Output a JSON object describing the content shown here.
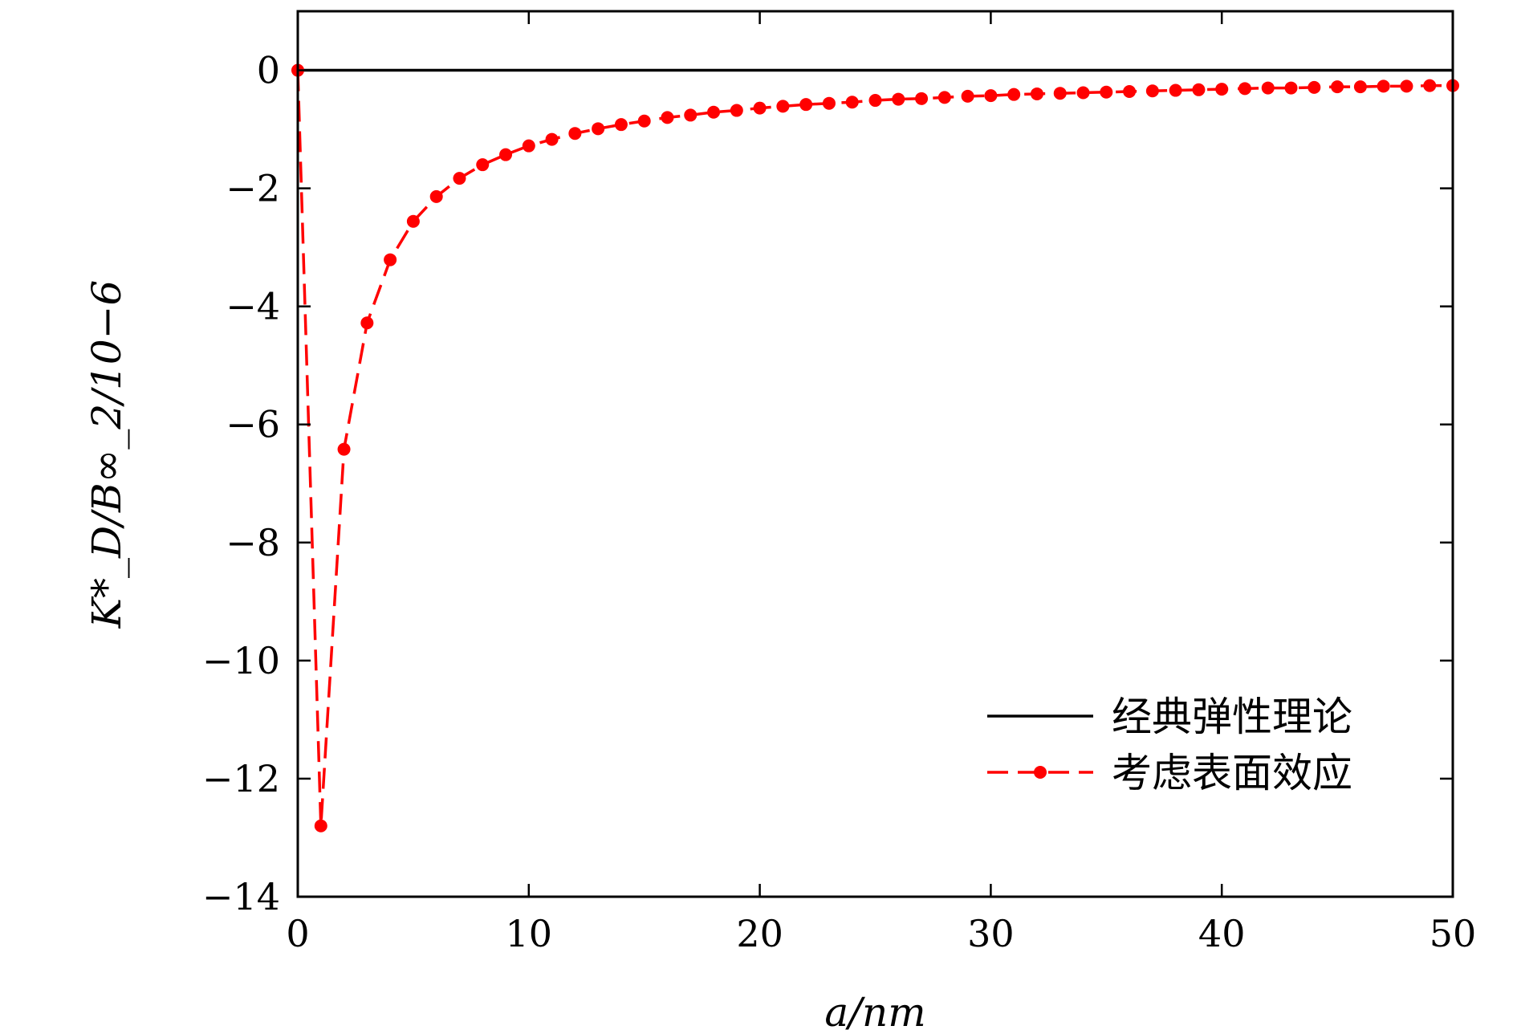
{
  "chart_data": {
    "type": "line",
    "xlabel": "a/nm",
    "ylabel": "K*_D/B∞_2/10−6",
    "xlim": [
      0,
      50
    ],
    "ylim": [
      -14,
      1
    ],
    "x_ticks": [
      0,
      10,
      20,
      30,
      40,
      50
    ],
    "y_ticks": [
      0,
      -2,
      -4,
      -6,
      -8,
      -10,
      -12,
      -14
    ],
    "x_tick_labels": [
      "0",
      "10",
      "20",
      "30",
      "40",
      "50"
    ],
    "y_tick_labels": [
      "0",
      "−2",
      "−4",
      "−6",
      "−8",
      "−10",
      "−12",
      "−14"
    ],
    "grid": false,
    "legend_position": "lower-right",
    "series": [
      {
        "name": "经典弹性理论",
        "style": "solid",
        "color": "#000000",
        "x": [
          0,
          50
        ],
        "y": [
          0,
          0
        ]
      },
      {
        "name": "考虑表面效应",
        "style": "dashed-markers",
        "color": "#ff0000",
        "x": [
          0,
          1,
          2,
          3,
          4,
          5,
          6,
          7,
          8,
          9,
          10,
          11,
          12,
          13,
          14,
          15,
          16,
          17,
          18,
          19,
          20,
          21,
          22,
          23,
          24,
          25,
          26,
          27,
          28,
          29,
          30,
          31,
          32,
          33,
          34,
          35,
          36,
          37,
          38,
          39,
          40,
          41,
          42,
          43,
          44,
          45,
          46,
          47,
          48,
          49,
          50
        ],
        "y": [
          0,
          -12.8,
          -6.42,
          -4.28,
          -3.21,
          -2.56,
          -2.14,
          -1.83,
          -1.6,
          -1.43,
          -1.28,
          -1.17,
          -1.07,
          -0.99,
          -0.92,
          -0.86,
          -0.8,
          -0.76,
          -0.71,
          -0.68,
          -0.64,
          -0.61,
          -0.58,
          -0.56,
          -0.54,
          -0.51,
          -0.49,
          -0.48,
          -0.46,
          -0.44,
          -0.43,
          -0.41,
          -0.4,
          -0.39,
          -0.38,
          -0.37,
          -0.36,
          -0.35,
          -0.34,
          -0.33,
          -0.32,
          -0.31,
          -0.3,
          -0.3,
          -0.29,
          -0.28,
          -0.28,
          -0.27,
          -0.27,
          -0.26,
          -0.26
        ]
      }
    ]
  }
}
